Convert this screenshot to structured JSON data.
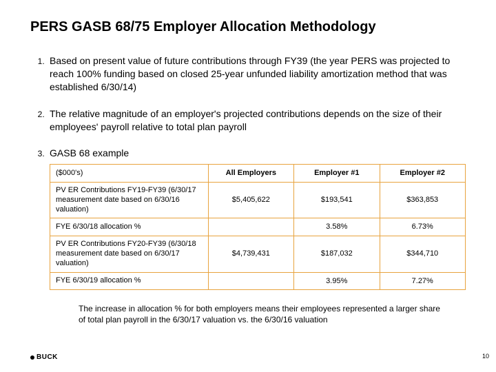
{
  "title": "PERS GASB 68/75 Employer Allocation Methodology",
  "items": [
    "Based on present value of future contributions through FY39 (the year PERS was projected to reach 100% funding based on closed 25-year unfunded liability amortization method that was established 6/30/14)",
    "The relative magnitude of an employer's projected contributions depends on the size of their employees' payroll relative to total plan payroll",
    "GASB 68 example"
  ],
  "table": {
    "border_color": "#e8a33d",
    "columns": [
      "($000's)",
      "All Employers",
      "Employer #1",
      "Employer #2"
    ],
    "rows": [
      {
        "label": "PV ER Contributions FY19-FY39 (6/30/17 measurement date based on 6/30/16 valuation)",
        "cells": [
          "$5,405,622",
          "$193,541",
          "$363,853"
        ]
      },
      {
        "label": "FYE 6/30/18 allocation %",
        "cells": [
          "",
          "3.58%",
          "6.73%"
        ]
      },
      {
        "label": "PV ER Contributions FY20-FY39 (6/30/18 measurement date based on 6/30/17 valuation)",
        "cells": [
          "$4,739,431",
          "$187,032",
          "$344,710"
        ]
      },
      {
        "label": "FYE 6/30/19 allocation %",
        "cells": [
          "",
          "3.95%",
          "7.27%"
        ]
      }
    ]
  },
  "footnote": "The increase in allocation % for both employers means their employees represented a larger share of total plan payroll in the 6/30/17 valuation vs. the 6/30/16 valuation",
  "logo": "BUCK",
  "pagenum": "10"
}
